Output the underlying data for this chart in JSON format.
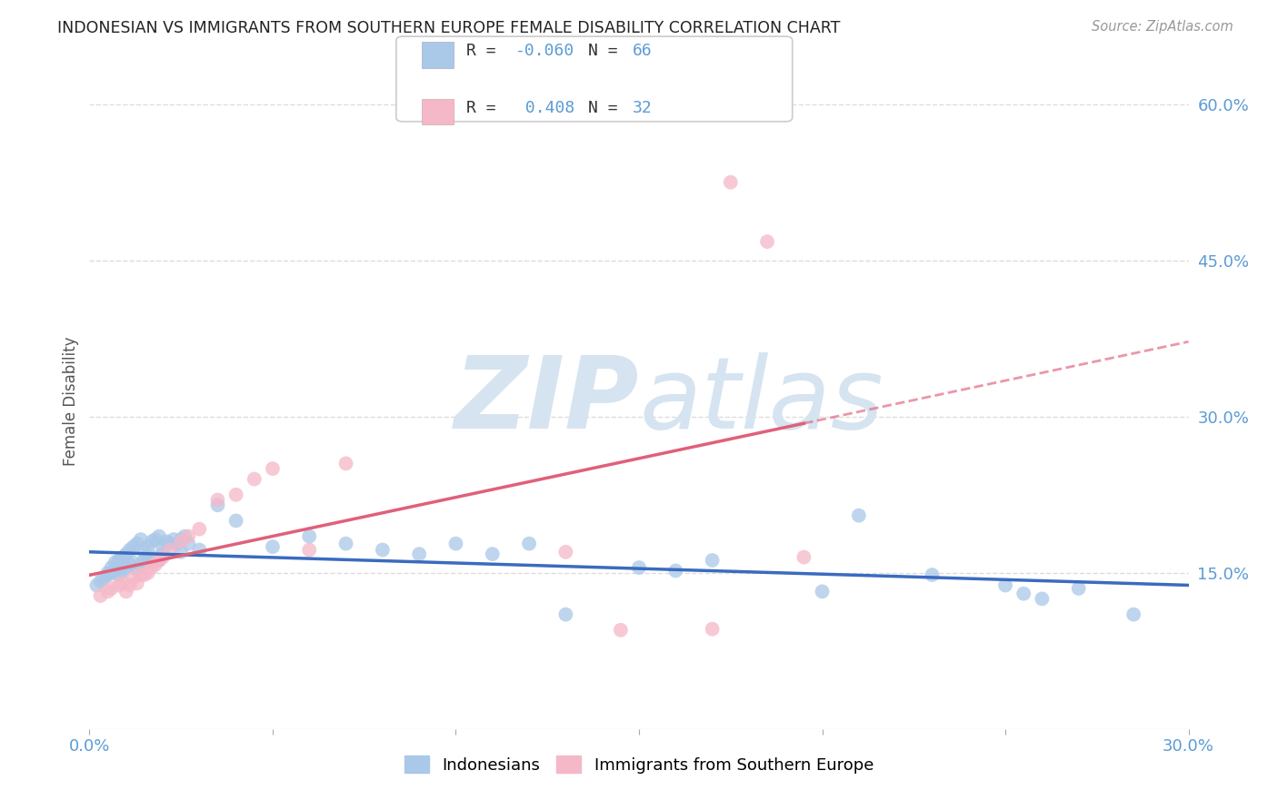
{
  "title": "INDONESIAN VS IMMIGRANTS FROM SOUTHERN EUROPE FEMALE DISABILITY CORRELATION CHART",
  "source": "Source: ZipAtlas.com",
  "ylabel": "Female Disability",
  "xlim": [
    0.0,
    0.3
  ],
  "ylim": [
    0.0,
    0.63
  ],
  "xticks": [
    0.0,
    0.05,
    0.1,
    0.15,
    0.2,
    0.25,
    0.3
  ],
  "yticks_right": [
    0.15,
    0.3,
    0.45,
    0.6
  ],
  "ytick_right_labels": [
    "15.0%",
    "30.0%",
    "45.0%",
    "60.0%"
  ],
  "grid_color": "#dddddd",
  "background_color": "#ffffff",
  "series1_name": "Indonesians",
  "series1_color": "#aac8e8",
  "series1_line_color": "#3a6bbf",
  "series2_name": "Immigrants from Southern Europe",
  "series2_color": "#f5b8c8",
  "series2_line_color": "#e0607a",
  "watermark_color": "#d5e4f0",
  "tick_label_color": "#5b9bd5",
  "legend_num_color": "#5b9bd5",
  "legend_text_color": "#333333",
  "indo_x": [
    0.002,
    0.003,
    0.004,
    0.005,
    0.005,
    0.006,
    0.006,
    0.007,
    0.007,
    0.008,
    0.008,
    0.009,
    0.009,
    0.01,
    0.01,
    0.011,
    0.011,
    0.012,
    0.012,
    0.013,
    0.013,
    0.014,
    0.014,
    0.015,
    0.015,
    0.016,
    0.016,
    0.017,
    0.017,
    0.018,
    0.018,
    0.019,
    0.019,
    0.02,
    0.02,
    0.021,
    0.022,
    0.023,
    0.024,
    0.025,
    0.025,
    0.026,
    0.027,
    0.03,
    0.035,
    0.04,
    0.05,
    0.06,
    0.07,
    0.08,
    0.09,
    0.1,
    0.11,
    0.12,
    0.13,
    0.15,
    0.16,
    0.17,
    0.2,
    0.21,
    0.23,
    0.25,
    0.255,
    0.26,
    0.27,
    0.285
  ],
  "indo_y": [
    0.138,
    0.142,
    0.145,
    0.15,
    0.148,
    0.155,
    0.15,
    0.16,
    0.153,
    0.162,
    0.148,
    0.165,
    0.151,
    0.168,
    0.155,
    0.172,
    0.158,
    0.175,
    0.16,
    0.178,
    0.153,
    0.182,
    0.158,
    0.162,
    0.17,
    0.175,
    0.165,
    0.18,
    0.162,
    0.182,
    0.165,
    0.185,
    0.162,
    0.175,
    0.168,
    0.18,
    0.178,
    0.182,
    0.178,
    0.182,
    0.17,
    0.185,
    0.178,
    0.172,
    0.215,
    0.2,
    0.175,
    0.185,
    0.178,
    0.172,
    0.168,
    0.178,
    0.168,
    0.178,
    0.11,
    0.155,
    0.152,
    0.162,
    0.132,
    0.205,
    0.148,
    0.138,
    0.13,
    0.125,
    0.135,
    0.11
  ],
  "se_x": [
    0.003,
    0.005,
    0.006,
    0.008,
    0.009,
    0.01,
    0.011,
    0.012,
    0.013,
    0.014,
    0.015,
    0.016,
    0.017,
    0.018,
    0.019,
    0.02,
    0.022,
    0.025,
    0.027,
    0.03,
    0.035,
    0.04,
    0.045,
    0.05,
    0.06,
    0.07,
    0.13,
    0.145,
    0.17,
    0.175,
    0.185,
    0.195
  ],
  "se_y": [
    0.128,
    0.132,
    0.135,
    0.138,
    0.14,
    0.132,
    0.138,
    0.145,
    0.14,
    0.148,
    0.148,
    0.15,
    0.155,
    0.158,
    0.162,
    0.165,
    0.172,
    0.18,
    0.185,
    0.192,
    0.22,
    0.225,
    0.24,
    0.25,
    0.172,
    0.255,
    0.17,
    0.095,
    0.096,
    0.525,
    0.468,
    0.165
  ],
  "indo_trend": [
    -0.06,
    0.163
  ],
  "se_trend": [
    0.408,
    0.13
  ]
}
